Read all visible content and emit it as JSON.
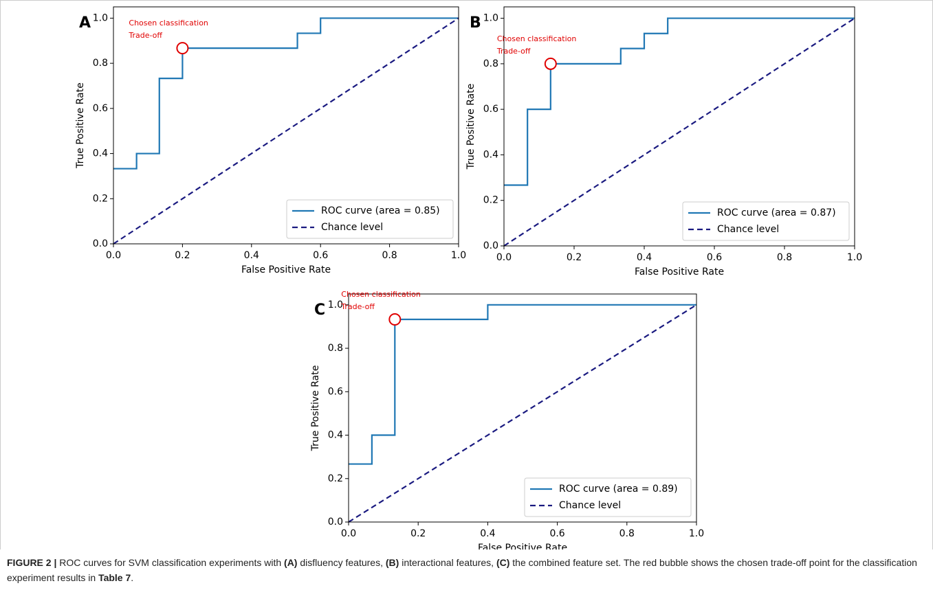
{
  "chart_data": [
    {
      "type": "line",
      "panel": "A",
      "xlabel": "False Positive Rate",
      "ylabel": "True Positive Rate",
      "xlim": [
        0,
        1
      ],
      "ylim": [
        0,
        1.05
      ],
      "xticks": [
        {
          "value": 0,
          "label": "0.0"
        },
        0.2,
        0.4,
        0.6,
        0.8,
        {
          "value": 1,
          "label": "1.0"
        }
      ],
      "yticks": [
        {
          "value": 0,
          "label": "0.0"
        },
        0.2,
        0.4,
        0.6,
        0.8,
        {
          "value": 1,
          "label": "1.0"
        }
      ],
      "legend": "lower right",
      "series": [
        {
          "name": "ROC curve (area = 0.85)",
          "color": "#1f77b4",
          "dashed": false,
          "x": [
            0,
            0.067,
            0.067,
            0.133,
            0.133,
            0.2,
            0.2,
            0.533,
            0.533,
            0.6,
            0.6,
            1
          ],
          "y": [
            0.333,
            0.333,
            0.4,
            0.4,
            0.733,
            0.733,
            0.867,
            0.867,
            0.933,
            0.933,
            1,
            1
          ]
        },
        {
          "name": "Chance level",
          "color": "#1a1a80",
          "dashed": true,
          "x": [
            0,
            1
          ],
          "y": [
            0,
            1
          ]
        }
      ],
      "annotation": {
        "lines": [
          "Chosen classification",
          "Trade-off"
        ],
        "color": "#e00000",
        "x": 0.2,
        "y": 0.867
      }
    },
    {
      "type": "line",
      "panel": "B",
      "xlabel": "False Positive Rate",
      "ylabel": "True Positive Rate",
      "xlim": [
        0,
        1
      ],
      "ylim": [
        0,
        1.05
      ],
      "xticks": [
        {
          "value": 0,
          "label": "0.0"
        },
        0.2,
        0.4,
        0.6,
        0.8,
        {
          "value": 1,
          "label": "1.0"
        }
      ],
      "yticks": [
        {
          "value": 0,
          "label": "0.0"
        },
        0.2,
        0.4,
        0.6,
        0.8,
        {
          "value": 1,
          "label": "1.0"
        }
      ],
      "legend": "lower right",
      "series": [
        {
          "name": "ROC curve (area = 0.87)",
          "color": "#1f77b4",
          "dashed": false,
          "x": [
            0,
            0.067,
            0.067,
            0.133,
            0.133,
            0.333,
            0.333,
            0.4,
            0.4,
            0.467,
            0.467,
            1
          ],
          "y": [
            0.267,
            0.267,
            0.6,
            0.6,
            0.8,
            0.8,
            0.867,
            0.867,
            0.933,
            0.933,
            1,
            1
          ]
        },
        {
          "name": "Chance level",
          "color": "#1a1a80",
          "dashed": true,
          "x": [
            0,
            1
          ],
          "y": [
            0,
            1
          ]
        }
      ],
      "annotation": {
        "lines": [
          "Chosen classification",
          "Trade-off"
        ],
        "color": "#e00000",
        "x": 0.133,
        "y": 0.8
      }
    },
    {
      "type": "line",
      "panel": "C",
      "xlabel": "False Positive Rate",
      "ylabel": "True Positive Rate",
      "xlim": [
        0,
        1
      ],
      "ylim": [
        0,
        1.05
      ],
      "xticks": [
        {
          "value": 0,
          "label": "0.0"
        },
        0.2,
        0.4,
        0.6,
        0.8,
        {
          "value": 1,
          "label": "1.0"
        }
      ],
      "yticks": [
        {
          "value": 0,
          "label": "0.0"
        },
        0.2,
        0.4,
        0.6,
        0.8,
        {
          "value": 1,
          "label": "1.0"
        }
      ],
      "legend": "lower right",
      "series": [
        {
          "name": "ROC curve (area = 0.89)",
          "color": "#1f77b4",
          "dashed": false,
          "x": [
            0,
            0.067,
            0.067,
            0.133,
            0.133,
            0.4,
            0.4,
            1
          ],
          "y": [
            0.267,
            0.267,
            0.4,
            0.4,
            0.933,
            0.933,
            1,
            1
          ]
        },
        {
          "name": "Chance level",
          "color": "#1a1a80",
          "dashed": true,
          "x": [
            0,
            1
          ],
          "y": [
            0,
            1
          ]
        }
      ],
      "annotation": {
        "lines": [
          "Chosen classification",
          "Trade-off"
        ],
        "color": "#e00000",
        "x": 0.133,
        "y": 0.933
      }
    }
  ],
  "caption": {
    "segments": [
      {
        "text": "FIGURE 2 |",
        "bold": true
      },
      {
        "text": " ROC curves for SVM classification experiments with ",
        "bold": false
      },
      {
        "text": "(A)",
        "bold": true
      },
      {
        "text": " disfluency features, ",
        "bold": false
      },
      {
        "text": "(B)",
        "bold": true
      },
      {
        "text": " interactional features, ",
        "bold": false
      },
      {
        "text": "(C)",
        "bold": true
      },
      {
        "text": " the combined feature set. The red bubble shows the chosen trade-off point for the classification experiment results in ",
        "bold": false
      },
      {
        "text": "Table 7",
        "bold": true
      },
      {
        "text": ".",
        "bold": false
      }
    ]
  }
}
